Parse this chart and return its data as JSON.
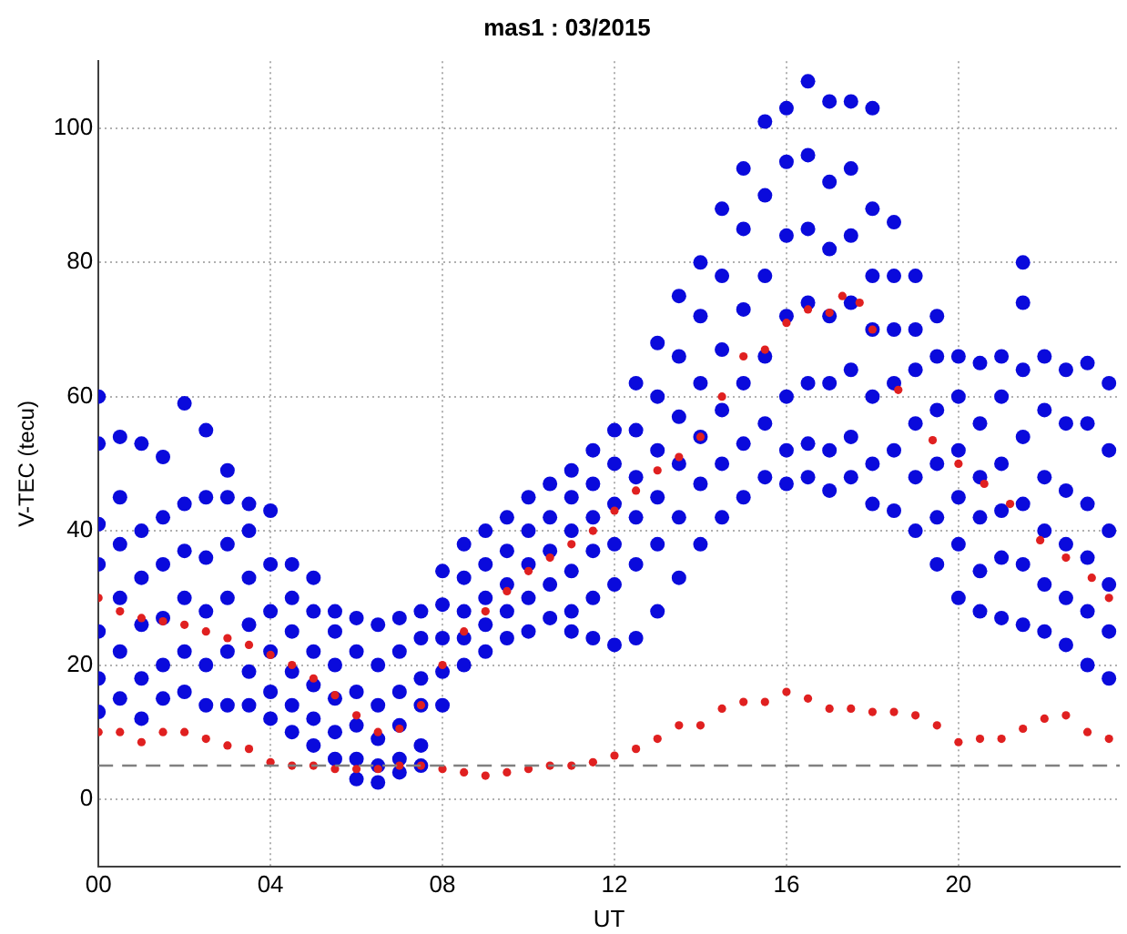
{
  "chart_data": {
    "type": "scatter",
    "title": "mas1 : 03/2015",
    "xlabel": "UT",
    "ylabel": "V-TEC (tecu)",
    "xlim": [
      0,
      23.75
    ],
    "ylim": [
      -10,
      110
    ],
    "xticks": [
      {
        "value": 0,
        "label": "00"
      },
      {
        "value": 4,
        "label": "04"
      },
      {
        "value": 8,
        "label": "08"
      },
      {
        "value": 12,
        "label": "12"
      },
      {
        "value": 16,
        "label": "16"
      },
      {
        "value": 20,
        "label": "20"
      }
    ],
    "yticks": [
      0,
      20,
      40,
      60,
      80,
      100
    ],
    "grid": true,
    "marker": "circle",
    "ref_lines": [
      {
        "axis": "y",
        "value": 5,
        "color": "#808080",
        "line_style": "dashed"
      }
    ],
    "series": [
      {
        "color": "#0a0adc",
        "x": [
          0,
          0,
          0,
          0,
          0,
          0,
          0,
          0.5,
          0.5,
          0.5,
          0.5,
          0.5,
          0.5,
          1,
          1,
          1,
          1,
          1,
          1,
          1.5,
          1.5,
          1.5,
          1.5,
          1.5,
          1.5,
          2,
          2,
          2,
          2,
          2,
          2,
          2.5,
          2.5,
          2.5,
          2.5,
          2.5,
          2.5,
          3,
          3,
          3,
          3,
          3,
          3,
          3.5,
          3.5,
          3.5,
          3.5,
          3.5,
          3.5,
          4,
          4,
          4,
          4,
          4,
          4,
          4.5,
          4.5,
          4.5,
          4.5,
          4.5,
          4.5,
          5,
          5,
          5,
          5,
          5,
          5,
          5.5,
          5.5,
          5.5,
          5.5,
          5.5,
          5.5,
          6,
          6,
          6,
          6,
          6,
          6,
          6.5,
          6.5,
          6.5,
          6.5,
          6.5,
          6.5,
          7,
          7,
          7,
          7,
          7,
          7,
          7.5,
          7.5,
          7.5,
          7.5,
          7.5,
          7.5,
          8,
          8,
          8,
          8,
          8,
          8.5,
          8.5,
          8.5,
          8.5,
          8.5,
          9,
          9,
          9,
          9,
          9,
          9.5,
          9.5,
          9.5,
          9.5,
          9.5,
          10,
          10,
          10,
          10,
          10,
          10.5,
          10.5,
          10.5,
          10.5,
          10.5,
          11,
          11,
          11,
          11,
          11,
          11,
          11.5,
          11.5,
          11.5,
          11.5,
          11.5,
          11.5,
          12,
          12,
          12,
          12,
          12,
          12,
          12.5,
          12.5,
          12.5,
          12.5,
          12.5,
          12.5,
          13,
          13,
          13,
          13,
          13,
          13,
          13.5,
          13.5,
          13.5,
          13.5,
          13.5,
          13.5,
          14,
          14,
          14,
          14,
          14,
          14,
          14.5,
          14.5,
          14.5,
          14.5,
          14.5,
          14.5,
          15,
          15,
          15,
          15,
          15,
          15,
          15.5,
          15.5,
          15.5,
          15.5,
          15.5,
          15.5,
          16,
          16,
          16,
          16,
          16,
          16,
          16,
          16.5,
          16.5,
          16.5,
          16.5,
          16.5,
          16.5,
          16.5,
          17,
          17,
          17,
          17,
          17,
          17,
          17,
          17.5,
          17.5,
          17.5,
          17.5,
          17.5,
          17.5,
          17.5,
          18,
          18,
          18,
          18,
          18,
          18,
          18,
          18.5,
          18.5,
          18.5,
          18.5,
          18.5,
          18.5,
          19,
          19,
          19,
          19,
          19,
          19,
          19.5,
          19.5,
          19.5,
          19.5,
          19.5,
          19.5,
          20,
          20,
          20,
          20,
          20,
          20,
          20.5,
          20.5,
          20.5,
          20.5,
          20.5,
          20.5,
          21,
          21,
          21,
          21,
          21,
          21,
          21.5,
          21.5,
          21.5,
          21.5,
          21.5,
          21.5,
          21.5,
          22,
          22,
          22,
          22,
          22,
          22,
          22.5,
          22.5,
          22.5,
          22.5,
          22.5,
          22.5,
          23,
          23,
          23,
          23,
          23,
          23,
          23.5,
          23.5,
          23.5,
          23.5,
          23.5,
          23.5
        ],
        "values": [
          60,
          53,
          41,
          35,
          25,
          18,
          13,
          54,
          45,
          38,
          30,
          22,
          15,
          53,
          40,
          33,
          26,
          18,
          12,
          51,
          42,
          35,
          27,
          20,
          15,
          59,
          44,
          37,
          30,
          22,
          16,
          55,
          45,
          36,
          28,
          20,
          14,
          49,
          45,
          38,
          30,
          22,
          14,
          44,
          40,
          33,
          26,
          19,
          14,
          43,
          35,
          28,
          22,
          16,
          12,
          35,
          30,
          25,
          19,
          14,
          10,
          33,
          28,
          22,
          17,
          12,
          8,
          28,
          25,
          20,
          15,
          10,
          6,
          27,
          22,
          16,
          11,
          6,
          3,
          26,
          20,
          14,
          9,
          5,
          2.5,
          27,
          22,
          16,
          11,
          6,
          4,
          28,
          24,
          18,
          14,
          8,
          5,
          34,
          29,
          24,
          19,
          14,
          38,
          33,
          28,
          24,
          20,
          40,
          35,
          30,
          26,
          22,
          42,
          37,
          32,
          28,
          24,
          45,
          40,
          35,
          30,
          25,
          47,
          42,
          37,
          32,
          27,
          49,
          45,
          40,
          34,
          28,
          25,
          52,
          47,
          42,
          37,
          30,
          24,
          55,
          50,
          44,
          38,
          32,
          23,
          62,
          55,
          48,
          42,
          35,
          24,
          68,
          60,
          52,
          45,
          38,
          28,
          75,
          66,
          57,
          50,
          42,
          33,
          80,
          72,
          62,
          54,
          47,
          38,
          88,
          78,
          67,
          58,
          50,
          42,
          94,
          85,
          73,
          62,
          53,
          45,
          101,
          90,
          78,
          66,
          56,
          48,
          103,
          95,
          84,
          72,
          60,
          52,
          47,
          107,
          96,
          85,
          74,
          62,
          53,
          48,
          104,
          92,
          82,
          72,
          62,
          52,
          46,
          104,
          94,
          84,
          74,
          64,
          54,
          48,
          103,
          88,
          78,
          70,
          60,
          50,
          44,
          86,
          78,
          70,
          62,
          52,
          43,
          78,
          70,
          64,
          56,
          48,
          40,
          72,
          66,
          58,
          50,
          42,
          35,
          66,
          60,
          52,
          45,
          38,
          30,
          65,
          56,
          48,
          42,
          34,
          28,
          66,
          60,
          50,
          43,
          36,
          27,
          80,
          74,
          64,
          54,
          44,
          35,
          26,
          66,
          58,
          48,
          40,
          32,
          25,
          64,
          56,
          46,
          38,
          30,
          23,
          65,
          56,
          44,
          36,
          28,
          20,
          62,
          52,
          40,
          32,
          25,
          18
        ]
      },
      {
        "color": "#e02020",
        "x": [
          0,
          0.5,
          1,
          1.5,
          2,
          2.5,
          3,
          3.5,
          4,
          4.5,
          5,
          5.5,
          6,
          6.5,
          7,
          7.5,
          8,
          8.5,
          9,
          9.5,
          10,
          10.5,
          11,
          11.5,
          12,
          12.5,
          13,
          13.5,
          14,
          14.5,
          15,
          15.5,
          16,
          16.5,
          17,
          17.3,
          17.7,
          18,
          18.6,
          19.4,
          20,
          20.6,
          21.2,
          21.9,
          22.5,
          23.1,
          23.5
        ],
        "values": [
          30,
          28,
          27,
          26.5,
          26,
          25,
          24,
          23,
          21.5,
          20,
          18,
          15.5,
          12.5,
          10,
          10.5,
          14,
          20,
          25,
          28,
          31,
          34,
          36,
          38,
          40,
          43,
          46,
          49,
          51,
          54,
          60,
          66,
          67,
          71,
          73,
          72.5,
          75,
          74,
          70,
          61,
          53.5,
          50,
          47,
          44,
          38.6,
          36,
          33,
          30
        ]
      },
      {
        "color": "#e02020",
        "x": [
          0,
          0.5,
          1,
          1.5,
          2,
          2.5,
          3,
          3.5,
          4,
          4.5,
          5,
          5.5,
          6,
          6.5,
          7,
          7.5,
          8,
          8.5,
          9,
          9.5,
          10,
          10.5,
          11,
          11.5,
          12,
          12.5,
          13,
          13.5,
          14,
          14.5,
          15,
          15.5,
          16,
          16.5,
          17,
          17.5,
          18,
          18.5,
          19,
          19.5,
          20,
          20.5,
          21,
          21.5,
          22,
          22.5,
          23,
          23.5
        ],
        "values": [
          10,
          10,
          8.5,
          10,
          10,
          9,
          8,
          7.5,
          5.5,
          5,
          5,
          4.5,
          4.5,
          4.5,
          5,
          5,
          4.5,
          4,
          3.5,
          4,
          4.5,
          5,
          5,
          5.5,
          6.5,
          7.5,
          9,
          11,
          11,
          13.5,
          14.5,
          14.5,
          16,
          15,
          13.5,
          13.5,
          13,
          13,
          12.5,
          11,
          8.5,
          9,
          9,
          10.5,
          12,
          12.5,
          10,
          9
        ]
      }
    ]
  }
}
